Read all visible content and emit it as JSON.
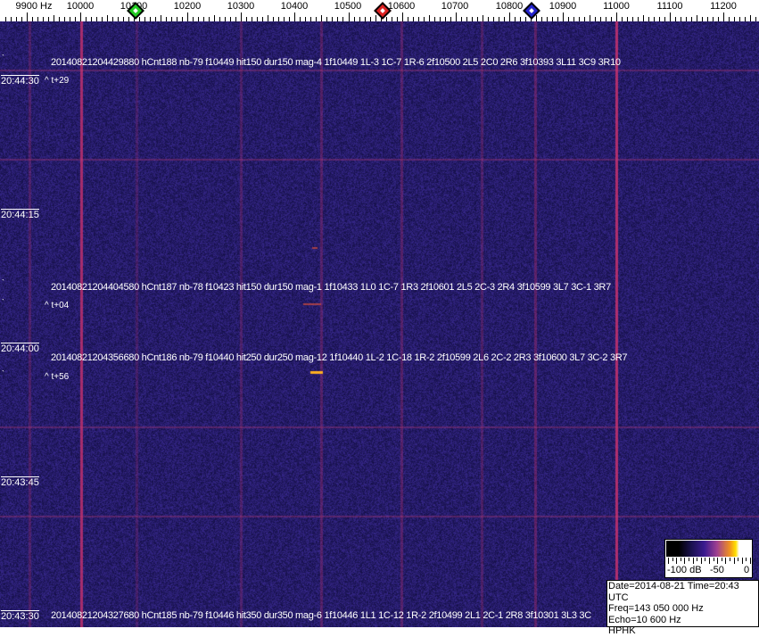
{
  "axis": {
    "labels": [
      "9900 Hz",
      "10000",
      "10100",
      "10200",
      "10300",
      "10400",
      "10500",
      "10600",
      "10700",
      "10800",
      "10900",
      "11000",
      "11100",
      "11200"
    ],
    "unit": "Hz"
  },
  "markers": [
    {
      "name": "green-marker",
      "color": "#22cc22",
      "freq_hz": 10100
    },
    {
      "name": "red-marker",
      "color": "#dd2222",
      "freq_hz": 10563
    },
    {
      "name": "blue-marker",
      "color": "#2222cc",
      "freq_hz": 10840
    }
  ],
  "time_labels": [
    "20:44:30",
    "20:44:15",
    "20:44:00",
    "20:43:45",
    "20:43:30"
  ],
  "events": [
    {
      "text": "20140821204429880 hCnt188 nb-79 f10449 hit150 dur150 mag-4  1f10449 1L-3 1C-7 1R-6 2f10500 2L5 2C0 2R6 3f10393 3L11 3C9 3R10",
      "offset": "^ t+29"
    },
    {
      "text": "20140821204404580 hCnt187 nb-78 f10423 hit150 dur150 mag-1  1f10433 1L0 1C-7 1R3 2f10601 2L5 2C-3 2R4 3f10599 3L7 3C-1 3R7",
      "offset": "^ t+04"
    },
    {
      "text": "20140821204356680 hCnt186 nb-79 f10440 hit250 dur250 mag-12  1f10440 1L-2 1C-18 1R-2 2f10599 2L6 2C-2 2R3 3f10600 3L7 3C-2 3R7",
      "offset": "^ t+56"
    },
    {
      "text": "20140821204327680 hCnt185 nb-79 f10446 hit350 dur350 mag-6  1f10446 1L1 1C-12 1R-2 2f10499 2L1 2C-1 2R8 3f10301 3L3 3C",
      "offset": ""
    }
  ],
  "colorbar": {
    "labels": [
      "-100 dB",
      "-50",
      "0"
    ]
  },
  "info": {
    "date_time": "Date=2014-08-21 Time=20:43 UTC",
    "freq": "Freq=143 050 000 Hz",
    "echo": "Echo=10 600 Hz",
    "station": "HPHK"
  },
  "colors": {
    "background": "#1c1a6a",
    "line": "#b0306a",
    "echo": "#ffb020"
  }
}
